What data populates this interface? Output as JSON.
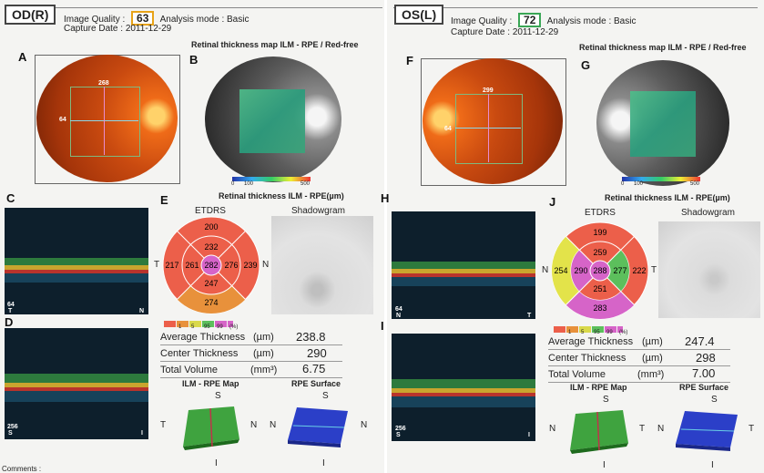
{
  "left": {
    "eye": "OD(R)",
    "image_quality_label": "Image Quality :",
    "image_quality": "63",
    "quality_color": "#e8a317",
    "analysis_mode": "Analysis mode : Basic",
    "capture_date": "Capture Date : 2011-12-29",
    "fundus_values": {
      "top": "268",
      "left": "64"
    },
    "map_title": "Retinal thickness map ILM - RPE / Red-free",
    "map_scale": [
      "0",
      "100",
      "500"
    ],
    "etdrs_title": "Retinal thickness ILM - RPE(µm)",
    "etdrs_label": "ETDRS",
    "shadow_label": "Shadowgram",
    "etdrs": {
      "center": "282",
      "inner_top": "232",
      "inner_left": "261",
      "inner_right": "276",
      "inner_bottom": "247",
      "outer_top": "200",
      "outer_left": "217",
      "outer_right": "239",
      "outer_bottom": "274"
    },
    "etdrs_side_left": "T",
    "etdrs_side_right": "N",
    "oct1_mark": "64",
    "oct1_letters": [
      "T",
      "N"
    ],
    "oct2_mark": "256",
    "oct2_letters": [
      "S",
      "I"
    ],
    "avg_label": "Average Thickness",
    "avg_unit": "(µm)",
    "avg": "238.8",
    "center_label": "Center Thickness",
    "center_unit": "(µm)",
    "center_val": "290",
    "vol_label": "Total Volume",
    "vol_unit": "(mm³)",
    "vol": "6.75",
    "ilm_map": "ILM - RPE Map",
    "rpe_surface": "RPE Surface",
    "map_axes": {
      "s1": "S",
      "t": "T",
      "n": "N",
      "i1": "I",
      "s2": "S",
      "n2": "N",
      "t2": "N",
      "i2": "I"
    }
  },
  "right": {
    "eye": "OS(L)",
    "image_quality_label": "Image Quality :",
    "image_quality": "72",
    "quality_color": "#3aa655",
    "analysis_mode": "Analysis mode : Basic",
    "capture_date": "Capture Date : 2011-12-29",
    "fundus_values": {
      "top": "299",
      "left": "64"
    },
    "map_title": "Retinal thickness map ILM - RPE / Red-free",
    "map_scale": [
      "0",
      "100",
      "500"
    ],
    "etdrs_title": "Retinal thickness ILM - RPE(µm)",
    "etdrs_label": "ETDRS",
    "shadow_label": "Shadowgram",
    "etdrs": {
      "center": "288",
      "inner_top": "259",
      "inner_left": "290",
      "inner_right": "277",
      "inner_bottom": "251",
      "outer_top": "199",
      "outer_left": "254",
      "outer_right": "222",
      "outer_bottom": "283"
    },
    "etdrs_side_left": "N",
    "etdrs_side_right": "T",
    "oct1_mark": "64",
    "oct1_letters": [
      "N",
      "T"
    ],
    "oct2_mark": "256",
    "oct2_letters": [
      "S",
      "I"
    ],
    "avg_label": "Average Thickness",
    "avg_unit": "(µm)",
    "avg": "247.4",
    "center_label": "Center Thickness",
    "center_unit": "(µm)",
    "center_val": "298",
    "vol_label": "Total Volume",
    "vol_unit": "(mm³)",
    "vol": "7.00",
    "ilm_map": "ILM - RPE Map",
    "rpe_surface": "RPE Surface",
    "map_axes": {
      "s1": "S",
      "t": "N",
      "n": "T",
      "i1": "I",
      "s2": "S",
      "n2": "N",
      "t2": "T",
      "i2": "I"
    }
  },
  "panel_letters": {
    "A": "A",
    "B": "B",
    "C": "C",
    "D": "D",
    "E": "E",
    "F": "F",
    "G": "G",
    "H": "H",
    "I": "I",
    "J": "J"
  },
  "legend_ticks": [
    "1",
    "5",
    "95",
    "99",
    "(%)"
  ],
  "comments": "Comments :"
}
